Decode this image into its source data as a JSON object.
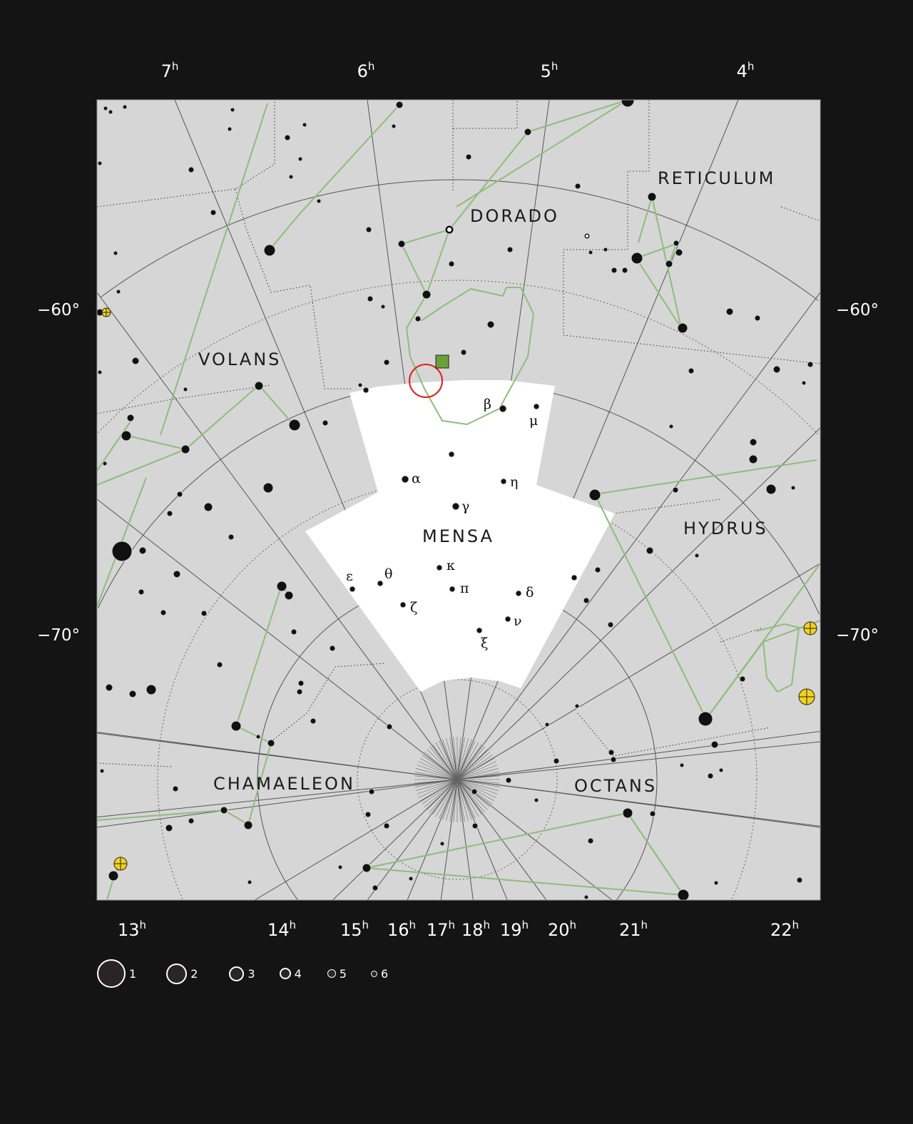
{
  "ra_labels_top": [
    {
      "h": "7",
      "s": "h"
    },
    {
      "h": "6",
      "s": "h"
    },
    {
      "h": "5",
      "s": "h"
    },
    {
      "h": "4",
      "s": "h"
    }
  ],
  "ra_labels_bottom": [
    {
      "h": "13",
      "s": "h"
    },
    {
      "h": "14",
      "s": "h"
    },
    {
      "h": "15",
      "s": "h"
    },
    {
      "h": "16",
      "s": "h"
    },
    {
      "h": "17",
      "s": "h"
    },
    {
      "h": "18",
      "s": "h"
    },
    {
      "h": "19",
      "s": "h"
    },
    {
      "h": "20",
      "s": "h"
    },
    {
      "h": "21",
      "s": "h"
    },
    {
      "h": "22",
      "s": "h"
    }
  ],
  "dec_labels": {
    "minus60": "−60°",
    "minus70": "−70°"
  },
  "constellations": {
    "reticulum": "RETICULUM",
    "dorado": "DORADO",
    "volans": "VOLANS",
    "mensa": "MENSA",
    "hydrus": "HYDRUS",
    "chamaeleon": "CHAMAELEON",
    "octans": "OCTANS"
  },
  "greek": {
    "alpha": "α",
    "beta": "β",
    "gamma": "γ",
    "delta": "δ",
    "epsilon": "ε",
    "zeta": "ζ",
    "eta": "η",
    "theta": "θ",
    "kappa": "κ",
    "mu": "μ",
    "nu": "ν",
    "xi": "ξ",
    "pi": "π"
  },
  "legend": {
    "magnitudes": [
      "1",
      "2",
      "3",
      "4",
      "5",
      "6"
    ]
  },
  "colors": {
    "background": "#141414",
    "sky": "#d6d6d6",
    "highlight": "#ffffff",
    "constellation_lines": "#8fbc7c",
    "marker_circle": "#e0201c",
    "marker_square": "#6a9f3a",
    "planet": "#f0d21a"
  }
}
